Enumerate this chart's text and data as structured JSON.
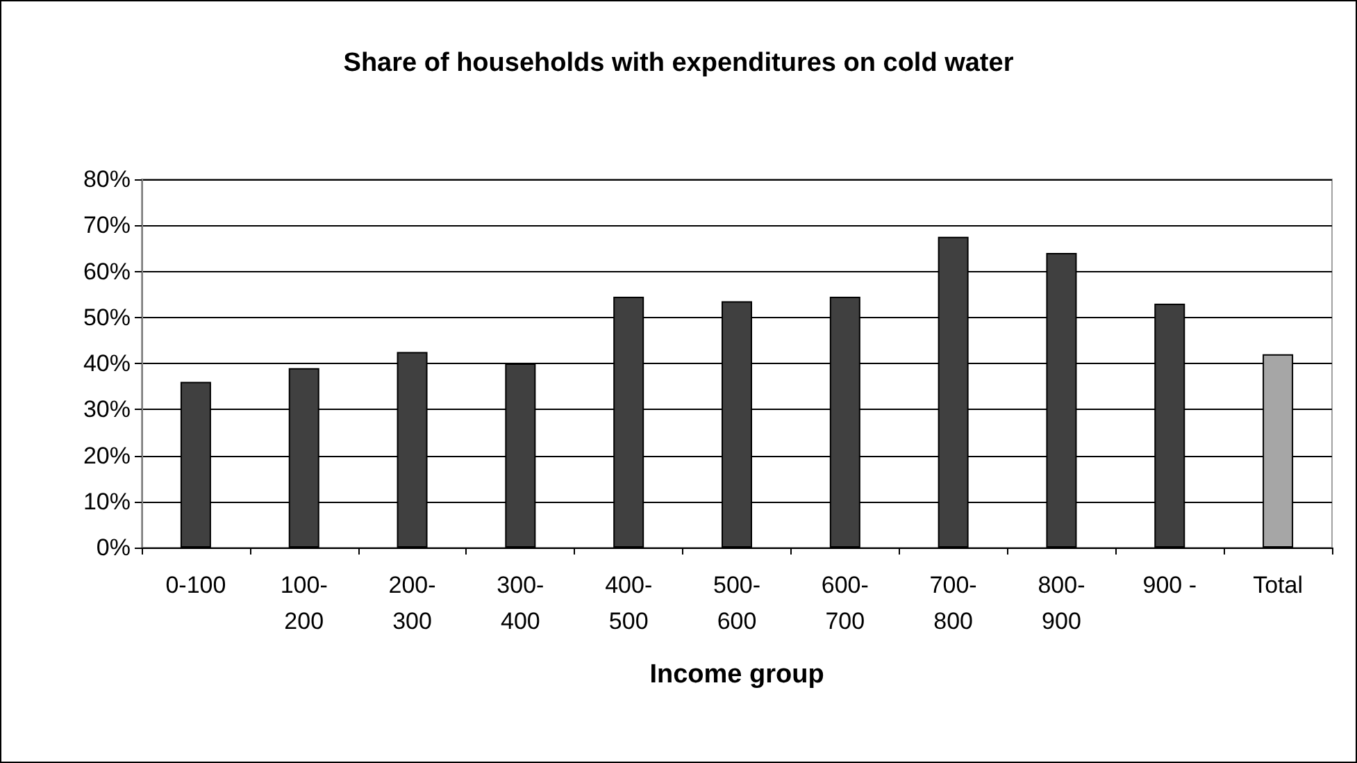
{
  "chart_data": {
    "type": "bar",
    "title": "Share of households with expenditures on cold water",
    "xlabel": "Income group",
    "categories": [
      "0-100",
      "100-200",
      "200-300",
      "300-400",
      "400-500",
      "500-600",
      "600-700",
      "700-800",
      "800-900",
      "900 -",
      "Total"
    ],
    "values": [
      36,
      39,
      42.5,
      40,
      54.5,
      53.5,
      54.5,
      67.5,
      64,
      53,
      42
    ],
    "colors": [
      "#404040",
      "#404040",
      "#404040",
      "#404040",
      "#404040",
      "#404040",
      "#404040",
      "#404040",
      "#404040",
      "#404040",
      "#a6a6a6"
    ],
    "ylim": [
      0,
      80
    ],
    "yticks": [
      {
        "value": 0,
        "label": "0%"
      },
      {
        "value": 10,
        "label": "10%"
      },
      {
        "value": 20,
        "label": "20%"
      },
      {
        "value": 30,
        "label": "30%"
      },
      {
        "value": 40,
        "label": "40%"
      },
      {
        "value": 50,
        "label": "50%"
      },
      {
        "value": 60,
        "label": "60%"
      },
      {
        "value": 70,
        "label": "70%"
      },
      {
        "value": 80,
        "label": "80%"
      }
    ],
    "grid": "y"
  }
}
